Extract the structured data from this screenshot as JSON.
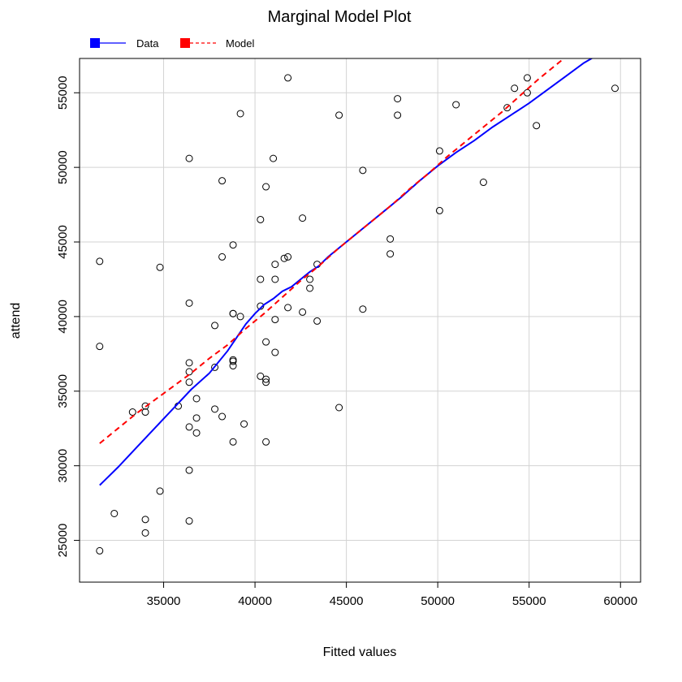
{
  "chart_data": {
    "type": "scatter",
    "title": "Marginal Model Plot",
    "xlabel": "Fitted values",
    "ylabel": "attend",
    "xlim": [
      30400,
      61100
    ],
    "ylim": [
      22200,
      57300
    ],
    "xticks": [
      35000,
      40000,
      45000,
      50000,
      55000,
      60000
    ],
    "yticks": [
      25000,
      30000,
      35000,
      40000,
      45000,
      50000,
      55000
    ],
    "xtick_labels": [
      "35000",
      "40000",
      "45000",
      "50000",
      "55000",
      "60000"
    ],
    "ytick_labels": [
      "25000",
      "30000",
      "35000",
      "40000",
      "45000",
      "50000",
      "55000"
    ],
    "grid": true,
    "legend_position": "top-left",
    "colors": {
      "data": "#0000ff",
      "model": "#ff0000",
      "points": "#000000",
      "grid": "#d3d3d3"
    },
    "legend": [
      {
        "label": "Data",
        "style": "solid",
        "color": "#0000ff"
      },
      {
        "label": "Model",
        "style": "dashed",
        "color": "#ff0000"
      }
    ],
    "points": [
      [
        31500,
        24300
      ],
      [
        31500,
        43700
      ],
      [
        31500,
        38000
      ],
      [
        32300,
        26800
      ],
      [
        33300,
        33600
      ],
      [
        34000,
        34000
      ],
      [
        34000,
        33600
      ],
      [
        34000,
        26400
      ],
      [
        34000,
        25500
      ],
      [
        34800,
        28300
      ],
      [
        34800,
        43300
      ],
      [
        35800,
        34000
      ],
      [
        36400,
        50600
      ],
      [
        36400,
        40900
      ],
      [
        36400,
        36900
      ],
      [
        36400,
        36300
      ],
      [
        36400,
        35600
      ],
      [
        36400,
        32600
      ],
      [
        36400,
        29700
      ],
      [
        36400,
        26300
      ],
      [
        36800,
        34500
      ],
      [
        36800,
        33200
      ],
      [
        36800,
        32200
      ],
      [
        37800,
        39400
      ],
      [
        37800,
        36600
      ],
      [
        37800,
        33800
      ],
      [
        38200,
        49100
      ],
      [
        38200,
        44000
      ],
      [
        38200,
        33300
      ],
      [
        38800,
        44800
      ],
      [
        38800,
        40200
      ],
      [
        38800,
        40200
      ],
      [
        38800,
        37100
      ],
      [
        38800,
        37000
      ],
      [
        38800,
        36700
      ],
      [
        38800,
        31600
      ],
      [
        39200,
        53600
      ],
      [
        39200,
        40000
      ],
      [
        39400,
        32800
      ],
      [
        40300,
        46500
      ],
      [
        40300,
        42500
      ],
      [
        40300,
        40700
      ],
      [
        40300,
        36000
      ],
      [
        40600,
        48700
      ],
      [
        40600,
        38300
      ],
      [
        40600,
        35800
      ],
      [
        40600,
        35600
      ],
      [
        40600,
        31600
      ],
      [
        41000,
        50600
      ],
      [
        41100,
        43500
      ],
      [
        41100,
        42500
      ],
      [
        41100,
        39800
      ],
      [
        41100,
        37600
      ],
      [
        41600,
        43900
      ],
      [
        41800,
        56000
      ],
      [
        41800,
        44000
      ],
      [
        41800,
        40600
      ],
      [
        42600,
        46600
      ],
      [
        42600,
        40300
      ],
      [
        43000,
        42500
      ],
      [
        43000,
        41900
      ],
      [
        43400,
        43500
      ],
      [
        43400,
        39700
      ],
      [
        44600,
        53500
      ],
      [
        44600,
        33900
      ],
      [
        45900,
        49800
      ],
      [
        45900,
        40500
      ],
      [
        47400,
        45200
      ],
      [
        47400,
        44200
      ],
      [
        47800,
        54600
      ],
      [
        47800,
        53500
      ],
      [
        50100,
        51100
      ],
      [
        50100,
        47100
      ],
      [
        51000,
        54200
      ],
      [
        52500,
        49000
      ],
      [
        53800,
        54000
      ],
      [
        54200,
        55300
      ],
      [
        54900,
        56000
      ],
      [
        54900,
        55000
      ],
      [
        55400,
        52800
      ],
      [
        59700,
        55300
      ]
    ],
    "series": [
      {
        "name": "Data",
        "style": "solid",
        "x": [
          31500,
          32500,
          33500,
          34500,
          35500,
          36500,
          37500,
          38500,
          39000,
          39500,
          40000,
          40500,
          41000,
          41500,
          42000,
          42500,
          43000,
          43500,
          44000,
          45000,
          46000,
          47000,
          48000,
          49000,
          50000,
          51000,
          52000,
          53000,
          54000,
          55000,
          56000,
          57000,
          58000,
          58700
        ],
        "y": [
          28700,
          29900,
          31200,
          32500,
          33800,
          35100,
          36200,
          37700,
          38600,
          39500,
          40200,
          40800,
          41200,
          41700,
          42000,
          42500,
          43000,
          43400,
          44000,
          45000,
          46000,
          47000,
          48000,
          49100,
          50100,
          51000,
          51800,
          52700,
          53500,
          54300,
          55200,
          56100,
          57000,
          57500
        ]
      },
      {
        "name": "Model",
        "style": "dashed",
        "x": [
          31500,
          32500,
          33500,
          34500,
          35500,
          36500,
          37500,
          38500,
          39500,
          40500,
          41500,
          42500,
          43500,
          44500,
          45500,
          46500,
          47500,
          48500,
          49500,
          50500,
          51500,
          52500,
          53500,
          54500,
          55500,
          56500,
          57300
        ],
        "y": [
          31500,
          32500,
          33500,
          34400,
          35300,
          36200,
          37200,
          38100,
          39200,
          40200,
          41300,
          42400,
          43400,
          44500,
          45500,
          46500,
          47500,
          48600,
          49600,
          50700,
          51700,
          52700,
          53700,
          54800,
          55900,
          56900,
          57700
        ]
      }
    ]
  }
}
